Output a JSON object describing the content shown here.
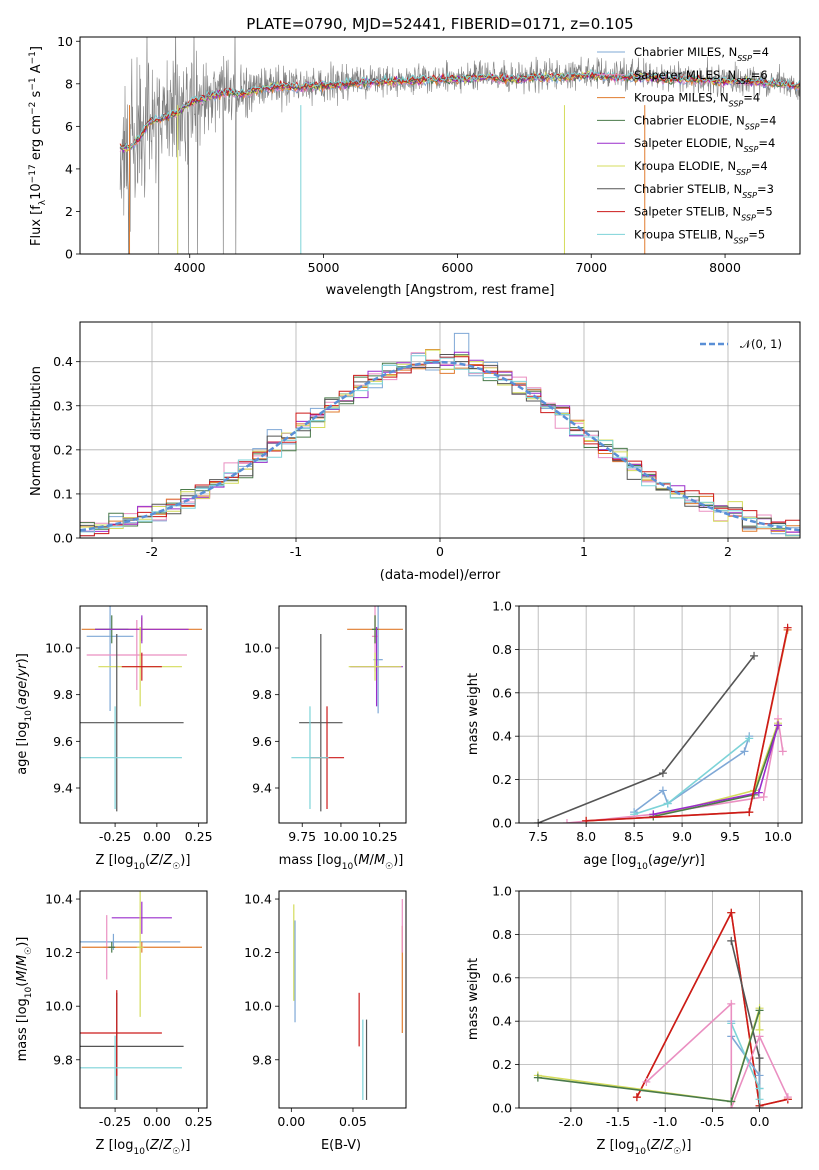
{
  "title": "PLATE=0790, MJD=52441, FIBERID=0171, z=0.105",
  "palette": [
    "#7fa8d6",
    "#ea8fc1",
    "#e07b2e",
    "#4a7a4a",
    "#9a2dcc",
    "#d4dc5c",
    "#555555",
    "#cc1a1a",
    "#7dd3d8"
  ],
  "chart_data": [
    {
      "id": "spectrum",
      "type": "line",
      "title": "PLATE=0790, MJD=52441, FIBERID=0171, z=0.105",
      "xlabel": "wavelength [Angstrom, rest frame]",
      "ylabel": "Flux [f_λ10^-17 erg cm^-2 s^-1 A^-1]",
      "xlim": [
        3180,
        8560
      ],
      "ylim": [
        0,
        10.2
      ],
      "xticks": [
        4000,
        5000,
        6000,
        7000,
        8000
      ],
      "yticks": [
        0,
        2,
        4,
        6,
        8,
        10
      ],
      "grid": false,
      "legend_position": "top-right",
      "data_series": {
        "name": "data",
        "color": "#808080",
        "x": [
          3480,
          3550,
          3620,
          3700,
          3800,
          3900,
          4000,
          4100,
          4200,
          4300,
          4400,
          4500,
          4600,
          4700,
          4800,
          4900,
          5000,
          5200,
          5400,
          5600,
          5800,
          6000,
          6200,
          6400,
          6600,
          6800,
          7000,
          7200,
          7400,
          7600,
          7800,
          8000,
          8200,
          8400,
          8560
        ],
        "y": [
          5.0,
          5.2,
          6.0,
          6.6,
          6.5,
          6.8,
          7.2,
          7.4,
          7.6,
          7.7,
          7.6,
          7.8,
          7.9,
          8.0,
          7.9,
          8.0,
          8.0,
          8.1,
          8.2,
          8.2,
          8.3,
          8.3,
          8.4,
          8.3,
          8.4,
          8.4,
          8.5,
          8.4,
          8.4,
          8.3,
          8.3,
          8.2,
          8.2,
          8.1,
          8.0
        ],
        "noise_sigma": [
          2.8,
          2.6,
          2.4,
          2.2,
          2.0,
          1.8,
          1.5,
          1.3,
          1.1,
          1.0,
          0.9,
          0.8,
          0.7,
          0.7,
          0.6,
          0.6,
          0.6,
          0.5,
          0.5,
          0.5,
          0.5,
          0.5,
          0.5,
          0.5,
          0.5,
          0.5,
          0.5,
          0.5,
          0.5,
          0.5,
          0.5,
          0.5,
          0.5,
          0.5,
          0.5
        ]
      },
      "model_series": [
        {
          "name": "Chabrier MILES, N_SSP=4",
          "color": "#7fa8d6"
        },
        {
          "name": "Salpeter MILES, N_SSP=6",
          "color": "#ea8fc1"
        },
        {
          "name": "Kroupa MILES, N_SSP=4",
          "color": "#e07b2e"
        },
        {
          "name": "Chabrier ELODIE, N_SSP=4",
          "color": "#4a7a4a"
        },
        {
          "name": "Salpeter ELODIE, N_SSP=4",
          "color": "#9a2dcc"
        },
        {
          "name": "Kroupa ELODIE, N_SSP=4",
          "color": "#d4dc5c"
        },
        {
          "name": "Chabrier STELIB, N_SSP=3",
          "color": "#555555"
        },
        {
          "name": "Salpeter STELIB, N_SSP=5",
          "color": "#cc1a1a"
        },
        {
          "name": "Kroupa STELIB, N_SSP=5",
          "color": "#7dd3d8"
        }
      ],
      "model_curve": {
        "x": [
          3480,
          3550,
          3620,
          3700,
          3800,
          3900,
          4000,
          4100,
          4200,
          4300,
          4400,
          4500,
          4600,
          4700,
          4800,
          4900,
          5000,
          5200,
          5400,
          5600,
          5800,
          6000,
          6200,
          6400,
          6600,
          6800,
          7000,
          7200,
          7400,
          7600,
          7800,
          8000,
          8200,
          8400,
          8560
        ],
        "y": [
          5.0,
          5.0,
          5.4,
          6.2,
          6.4,
          6.6,
          7.1,
          7.3,
          7.5,
          7.6,
          7.5,
          7.7,
          7.8,
          7.9,
          7.8,
          7.9,
          7.9,
          8.0,
          8.1,
          8.1,
          8.2,
          8.2,
          8.3,
          8.2,
          8.3,
          8.3,
          8.4,
          8.3,
          8.3,
          8.2,
          8.2,
          8.1,
          8.1,
          8.0,
          7.9
        ]
      }
    },
    {
      "id": "residuals",
      "type": "histogram",
      "xlabel": "(data-model)/error",
      "ylabel": "Normed distribution",
      "xlim": [
        -2.5,
        2.5
      ],
      "ylim": [
        0,
        0.49
      ],
      "xticks": [
        -2,
        -1,
        0,
        1,
        2
      ],
      "yticks": [
        0.0,
        0.1,
        0.2,
        0.3,
        0.4
      ],
      "grid": true,
      "legend_position": "top-right",
      "legend": [
        "𝒩(0, 1)"
      ],
      "bin_width": 0.1,
      "bin_start": -2.5,
      "reference": {
        "name": "𝒩(0, 1)",
        "color": "#5a8fd6",
        "style": "dashed"
      }
    },
    {
      "id": "age-vs-Z",
      "type": "errorbar",
      "xlabel": "Z [log10(Z/Z_sun)]",
      "ylabel": "age [log10(age/yr)]",
      "xlim": [
        -0.46,
        0.3
      ],
      "ylim": [
        9.25,
        10.18
      ],
      "xticks": [
        -0.25,
        0.0,
        0.25
      ],
      "yticks": [
        9.4,
        9.6,
        9.8,
        10.0
      ],
      "grid": false,
      "points": [
        {
          "x": -0.28,
          "y": 10.05,
          "xerr": 0.14,
          "yerr": 0.32,
          "color": "#7fa8d6"
        },
        {
          "x": -0.12,
          "y": 9.97,
          "xerr": 0.3,
          "yerr": 0.15,
          "color": "#ea8fc1"
        },
        {
          "x": -0.09,
          "y": 10.08,
          "xerr": 0.36,
          "yerr": 0.05,
          "color": "#e07b2e"
        },
        {
          "x": -0.27,
          "y": 10.08,
          "xerr": 0.1,
          "yerr": 0.06,
          "color": "#4a7a4a"
        },
        {
          "x": -0.09,
          "y": 10.08,
          "xerr": 0.28,
          "yerr": 0.06,
          "color": "#9a2dcc"
        },
        {
          "x": -0.1,
          "y": 9.92,
          "xerr": 0.25,
          "yerr": 0.17,
          "color": "#d4dc5c"
        },
        {
          "x": -0.24,
          "y": 9.68,
          "xerr": 0.4,
          "yerr": 0.38,
          "color": "#555555"
        },
        {
          "x": -0.09,
          "y": 9.92,
          "xerr": 0.12,
          "yerr": 0.06,
          "color": "#cc1a1a"
        },
        {
          "x": -0.25,
          "y": 9.53,
          "xerr": 0.4,
          "yerr": 0.22,
          "color": "#7dd3d8"
        }
      ]
    },
    {
      "id": "age-vs-mass",
      "type": "errorbar",
      "xlabel": "mass [log10(M/M_sun)]",
      "ylabel": "",
      "xlim": [
        9.6,
        10.42
      ],
      "ylim": [
        9.25,
        10.18
      ],
      "xticks": [
        9.75,
        10.0,
        10.25
      ],
      "yticks": [
        9.4,
        9.6,
        9.8,
        10.0
      ],
      "grid": false,
      "points": [
        {
          "x": 10.24,
          "y": 9.95,
          "xerr": 0.03,
          "yerr": 0.23,
          "color": "#7fa8d6"
        },
        {
          "x": 10.22,
          "y": 10.05,
          "xerr": 0.02,
          "yerr": 0.15,
          "color": "#ea8fc1"
        },
        {
          "x": 10.22,
          "y": 10.08,
          "xerr": 0.18,
          "yerr": 0.06,
          "color": "#e07b2e"
        },
        {
          "x": 10.22,
          "y": 10.08,
          "xerr": 0.02,
          "yerr": 0.06,
          "color": "#4a7a4a"
        },
        {
          "x": 10.23,
          "y": 9.92,
          "xerr": 0.17,
          "yerr": 0.17,
          "color": "#9a2dcc"
        },
        {
          "x": 10.22,
          "y": 9.92,
          "xerr": 0.17,
          "yerr": 0.06,
          "color": "#d4dc5c"
        },
        {
          "x": 9.87,
          "y": 9.68,
          "xerr": 0.14,
          "yerr": 0.38,
          "color": "#555555"
        },
        {
          "x": 9.91,
          "y": 9.53,
          "xerr": 0.11,
          "yerr": 0.22,
          "color": "#cc1a1a"
        },
        {
          "x": 9.8,
          "y": 9.53,
          "xerr": 0.12,
          "yerr": 0.22,
          "color": "#7dd3d8"
        }
      ]
    },
    {
      "id": "weight-vs-age",
      "type": "line",
      "xlabel": "age [log10(age/yr)]",
      "ylabel": "mass weight",
      "xlim": [
        7.3,
        10.25
      ],
      "ylim": [
        0,
        1.0
      ],
      "xticks": [
        7.5,
        8.0,
        8.5,
        9.0,
        9.5,
        10.0
      ],
      "yticks": [
        0.0,
        0.2,
        0.4,
        0.6,
        0.8,
        1.0
      ],
      "grid": true,
      "series": [
        {
          "color": "#555555",
          "x": [
            7.5,
            8.8,
            9.75
          ],
          "y": [
            0.0,
            0.23,
            0.77
          ]
        },
        {
          "color": "#7fa8d6",
          "x": [
            8.5,
            8.8,
            8.85,
            9.65,
            9.7
          ],
          "y": [
            0.05,
            0.15,
            0.09,
            0.33,
            0.4
          ]
        },
        {
          "color": "#7dd3d8",
          "x": [
            8.5,
            8.85,
            9.7
          ],
          "y": [
            0.04,
            0.09,
            0.39
          ]
        },
        {
          "color": "#ea8fc1",
          "x": [
            7.8,
            8.7,
            9.85,
            10.0,
            10.05
          ],
          "y": [
            0.0,
            0.04,
            0.12,
            0.48,
            0.33
          ]
        },
        {
          "color": "#e07b2e",
          "x": [
            8.0,
            9.7,
            10.1
          ],
          "y": [
            0.01,
            0.05,
            0.89
          ]
        },
        {
          "color": "#d4dc5c",
          "x": [
            8.7,
            9.75,
            10.0
          ],
          "y": [
            0.03,
            0.15,
            0.46
          ]
        },
        {
          "color": "#4a7a4a",
          "x": [
            8.7,
            9.75,
            10.0
          ],
          "y": [
            0.03,
            0.13,
            0.45
          ]
        },
        {
          "color": "#9a2dcc",
          "x": [
            8.7,
            9.8,
            10.0
          ],
          "y": [
            0.04,
            0.14,
            0.45
          ]
        },
        {
          "color": "#cc1a1a",
          "x": [
            8.0,
            9.7,
            10.1
          ],
          "y": [
            0.01,
            0.05,
            0.9
          ]
        }
      ]
    },
    {
      "id": "mass-vs-Z",
      "type": "errorbar",
      "xlabel": "Z [log10(Z/Z_sun)]",
      "ylabel": "mass [log10(M/M_sun)]",
      "xlim": [
        -0.46,
        0.3
      ],
      "ylim": [
        9.62,
        10.43
      ],
      "xticks": [
        -0.25,
        0.0,
        0.25
      ],
      "yticks": [
        9.8,
        10.0,
        10.2,
        10.4
      ],
      "grid": false,
      "points": [
        {
          "x": -0.26,
          "y": 10.24,
          "xerr": 0.4,
          "yerr": 0.03,
          "color": "#7fa8d6"
        },
        {
          "x": -0.3,
          "y": 10.22,
          "xerr": 0.02,
          "yerr": 0.12,
          "color": "#ea8fc1"
        },
        {
          "x": -0.09,
          "y": 10.22,
          "xerr": 0.36,
          "yerr": 0.02,
          "color": "#e07b2e"
        },
        {
          "x": -0.27,
          "y": 10.22,
          "xerr": 0.02,
          "yerr": 0.02,
          "color": "#4a7a4a"
        },
        {
          "x": -0.09,
          "y": 10.33,
          "xerr": 0.18,
          "yerr": 0.06,
          "color": "#9a2dcc"
        },
        {
          "x": -0.1,
          "y": 10.22,
          "xerr": 0.02,
          "yerr": 0.26,
          "color": "#d4dc5c"
        },
        {
          "x": -0.24,
          "y": 9.85,
          "xerr": 0.4,
          "yerr": 0.2,
          "color": "#555555"
        },
        {
          "x": -0.24,
          "y": 9.9,
          "xerr": 0.27,
          "yerr": 0.16,
          "color": "#cc1a1a"
        },
        {
          "x": -0.25,
          "y": 9.77,
          "xerr": 0.4,
          "yerr": 0.12,
          "color": "#7dd3d8"
        }
      ]
    },
    {
      "id": "mass-vs-ebv",
      "type": "errorbar",
      "xlabel": "E(B-V)",
      "ylabel": "",
      "xlim": [
        -0.01,
        0.093
      ],
      "ylim": [
        9.62,
        10.43
      ],
      "xticks": [
        0.0,
        0.05
      ],
      "yticks": [
        9.8,
        10.0,
        10.2,
        10.4
      ],
      "grid": false,
      "points": [
        {
          "x": 0.002,
          "y": 10.2,
          "xerr": 0.0,
          "yerr": 0.18,
          "color": "#d4dc5c"
        },
        {
          "x": 0.003,
          "y": 10.13,
          "xerr": 0.0,
          "yerr": 0.19,
          "color": "#7fa8d6"
        },
        {
          "x": 0.055,
          "y": 9.95,
          "xerr": 0.0,
          "yerr": 0.1,
          "color": "#cc1a1a"
        },
        {
          "x": 0.058,
          "y": 9.8,
          "xerr": 0.0,
          "yerr": 0.15,
          "color": "#7dd3d8"
        },
        {
          "x": 0.061,
          "y": 9.8,
          "xerr": 0.0,
          "yerr": 0.15,
          "color": "#555555"
        },
        {
          "x": 0.09,
          "y": 10.1,
          "xerr": 0.0,
          "yerr": 0.2,
          "color": "#e07b2e"
        },
        {
          "x": 0.09,
          "y": 10.3,
          "xerr": 0.0,
          "yerr": 0.1,
          "color": "#ea8fc1"
        }
      ]
    },
    {
      "id": "weight-vs-Z",
      "type": "line",
      "xlabel": "Z [log10(Z/Z_sun)]",
      "ylabel": "mass weight",
      "xlim": [
        -2.55,
        0.45
      ],
      "ylim": [
        0,
        1.0
      ],
      "xticks": [
        -2.0,
        -1.5,
        -1.0,
        -0.5,
        0.0
      ],
      "yticks": [
        0.0,
        0.2,
        0.4,
        0.6,
        0.8,
        1.0
      ],
      "grid": true,
      "series": [
        {
          "color": "#e07b2e",
          "x": [
            -1.3,
            -0.3,
            0.0,
            0.3
          ],
          "y": [
            0.05,
            0.9,
            0.01,
            0.04
          ]
        },
        {
          "color": "#cc1a1a",
          "x": [
            -1.3,
            -0.3,
            0.0,
            0.3
          ],
          "y": [
            0.05,
            0.9,
            0.01,
            0.04
          ]
        },
        {
          "color": "#555555",
          "x": [
            -0.3,
            0.0,
            0.0
          ],
          "y": [
            0.77,
            0.23,
            0.0
          ]
        },
        {
          "color": "#7fa8d6",
          "x": [
            -0.3,
            -0.3,
            0.0,
            0.0
          ],
          "y": [
            0.4,
            0.33,
            0.15,
            0.09
          ]
        },
        {
          "color": "#7dd3d8",
          "x": [
            -0.3,
            0.0,
            0.0
          ],
          "y": [
            0.39,
            0.09,
            0.04
          ]
        },
        {
          "color": "#ea8fc1",
          "x": [
            -1.2,
            -0.3,
            -0.3,
            0.0,
            0.3
          ],
          "y": [
            0.12,
            0.48,
            0.0,
            0.33,
            0.05
          ]
        },
        {
          "color": "#d4dc5c",
          "x": [
            -2.35,
            -0.3,
            0.0,
            0.0
          ],
          "y": [
            0.15,
            0.03,
            0.46,
            0.36
          ]
        },
        {
          "color": "#4a7a4a",
          "x": [
            -2.35,
            -0.3,
            0.0
          ],
          "y": [
            0.14,
            0.03,
            0.45
          ]
        }
      ]
    }
  ]
}
